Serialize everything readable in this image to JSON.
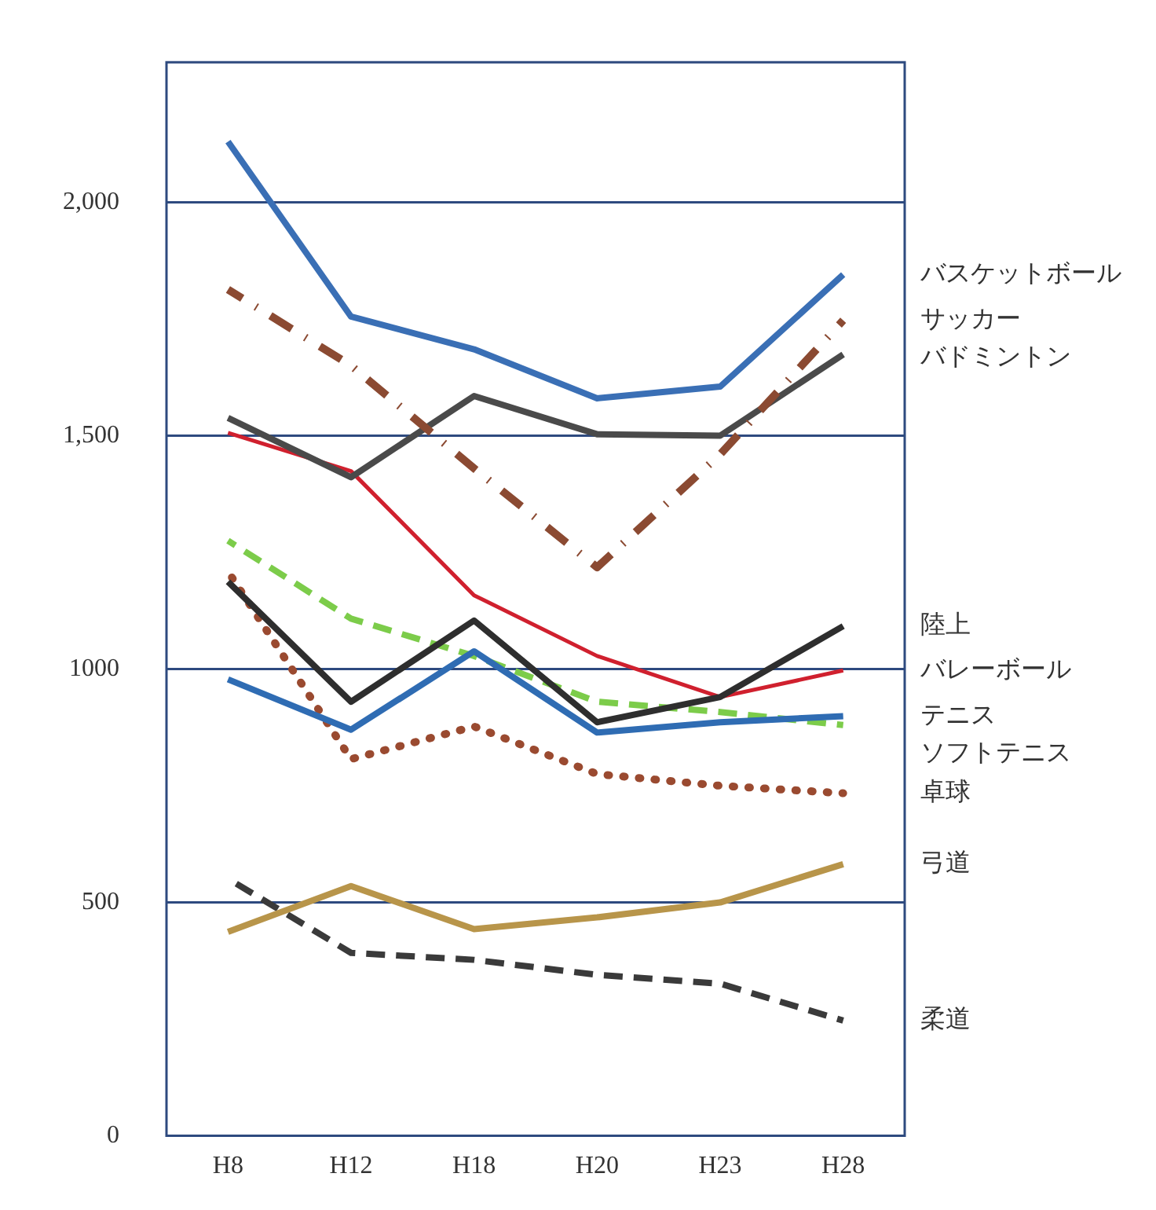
{
  "chart_data": {
    "type": "line",
    "categories": [
      "H8",
      "H12",
      "H18",
      "H20",
      "H23",
      "H28"
    ],
    "ylim": [
      0,
      2300
    ],
    "yticks": [
      0,
      500,
      1000,
      {
        "value": 1500,
        "label": "1,500"
      },
      {
        "value": 2000,
        "label": "2,000"
      }
    ],
    "grid": "y",
    "legend": false,
    "marker": "none",
    "series": [
      {
        "name": "バスケットボール",
        "color": "#3a6fb5",
        "line_style": "solid",
        "values": [
          2130,
          1755,
          1685,
          1580,
          1605,
          1845
        ]
      },
      {
        "name": "サッカー",
        "color": "#8b4a32",
        "line_style": "dashdot",
        "values": [
          1813,
          1650,
          1430,
          1218,
          1460,
          1747
        ]
      },
      {
        "name": "バドミントン",
        "color": "#4a4a4a",
        "line_style": "solid",
        "values": [
          1538,
          1411,
          1585,
          1503,
          1500,
          1674
        ]
      },
      {
        "name": "陸上",
        "color": "#2e2e2e",
        "line_style": "solid",
        "values": [
          1187,
          930,
          1104,
          886,
          940,
          1092
        ]
      },
      {
        "name": "バレーボール",
        "color": "#d0202e",
        "line_style": "solid",
        "values": [
          1506,
          1424,
          1158,
          1028,
          940,
          997
        ]
      },
      {
        "name": "テニス",
        "color": "#2f6cb3",
        "line_style": "solid",
        "values": [
          978,
          870,
          1038,
          864,
          886,
          899
        ]
      },
      {
        "name": "ソフトテニス",
        "color": "#7ccc4a",
        "line_style": "dashed",
        "values": [
          1275,
          1108,
          1028,
          930,
          908,
          880
        ]
      },
      {
        "name": "卓球",
        "color": "#9a4a30",
        "line_style": "dotted",
        "values": [
          1209,
          807,
          877,
          775,
          750,
          734
        ]
      },
      {
        "name": "弓道",
        "color": "#b8954a",
        "line_style": "solid",
        "values": [
          437,
          535,
          443,
          468,
          500,
          582
        ]
      },
      {
        "name": "柔道",
        "color": "#3a3a3a",
        "line_style": "dashed",
        "values": [
          551,
          392,
          377,
          345,
          326,
          247
        ]
      }
    ]
  }
}
